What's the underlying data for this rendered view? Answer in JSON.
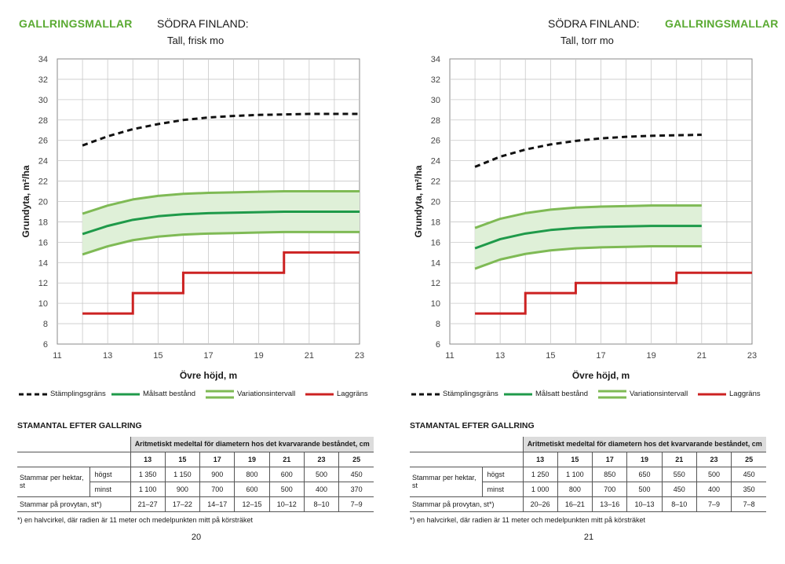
{
  "pages": [
    {
      "brand": "GALLRINGSMALLAR",
      "region": "SÖDRA FINLAND:",
      "subtitle": "Tall, frisk mo",
      "page_number": "20",
      "section_title": "STAMANTAL EFTER GALLRING",
      "table": {
        "header_caption": "Aritmetiskt medeltal för diametern hos det kvarvarande beståndet, cm",
        "diameters": [
          "13",
          "15",
          "17",
          "19",
          "21",
          "23",
          "25"
        ],
        "row_group_label": "Stammar per hektar, st",
        "rows": [
          {
            "label": "högst",
            "values": [
              "1 350",
              "1 150",
              "900",
              "800",
              "600",
              "500",
              "450"
            ]
          },
          {
            "label": "minst",
            "values": [
              "1 100",
              "900",
              "700",
              "600",
              "500",
              "400",
              "370"
            ]
          }
        ],
        "plot_row": {
          "label": "Stammar på provytan, st*)",
          "values": [
            "21–27",
            "17–22",
            "14–17",
            "12–15",
            "10–12",
            "8–10",
            "7–9"
          ]
        }
      },
      "footnote": "*) en halvcirkel, där radien är 11 meter och medelpunkten mitt på körsträket"
    },
    {
      "brand": "GALLRINGSMALLAR",
      "region": "SÖDRA FINLAND:",
      "subtitle": "Tall, torr mo",
      "page_number": "21",
      "section_title": "STAMANTAL EFTER GALLRING",
      "table": {
        "header_caption": "Aritmetiskt medeltal för diametern hos det kvarvarande beståndet, cm",
        "diameters": [
          "13",
          "15",
          "17",
          "19",
          "21",
          "23",
          "25"
        ],
        "row_group_label": "Stammar per hektar, st",
        "rows": [
          {
            "label": "högst",
            "values": [
              "1 250",
              "1 100",
              "850",
              "650",
              "550",
              "500",
              "450"
            ]
          },
          {
            "label": "minst",
            "values": [
              "1 000",
              "800",
              "700",
              "500",
              "450",
              "400",
              "350"
            ]
          }
        ],
        "plot_row": {
          "label": "Stammar på provytan, st*)",
          "values": [
            "20–26",
            "16–21",
            "13–16",
            "10–13",
            "8–10",
            "7–9",
            "7–8"
          ]
        }
      },
      "footnote": "*) en halvcirkel, där radien är 11 meter och medelpunkten mitt på körsträket"
    }
  ],
  "legend": {
    "stamp": "Stämplingsgräns",
    "target": "Målsatt bestånd",
    "variation": "Variationsintervall",
    "lag": "Laggräns"
  },
  "colors": {
    "brand_green": "#5aaa32",
    "stamp_line": "#111111",
    "target_line": "#1f9a4a",
    "variation_line": "#7fba55",
    "variation_fill": "#dff0d8",
    "lag_line": "#cc2222",
    "grid": "#c8c8c8"
  },
  "chart_data": [
    {
      "type": "line",
      "xlabel": "Övre höjd, m",
      "ylabel": "Grundyta, m²/ha",
      "xlim": [
        11,
        23
      ],
      "ylim": [
        6,
        34
      ],
      "x_ticks": [
        "11",
        "13",
        "15",
        "17",
        "19",
        "21",
        "23"
      ],
      "y_ticks": [
        "6",
        "8",
        "10",
        "12",
        "14",
        "16",
        "18",
        "20",
        "22",
        "24",
        "26",
        "28",
        "30",
        "32",
        "34"
      ],
      "grid": true,
      "legend_position": "bottom",
      "series": [
        {
          "name": "Stämplingsgräns",
          "style": "dashed",
          "x": [
            12,
            13,
            14,
            15,
            16,
            17,
            18,
            19,
            20,
            21,
            22,
            23
          ],
          "y": [
            25.5,
            26.4,
            27.1,
            27.6,
            28.0,
            28.25,
            28.4,
            28.5,
            28.55,
            28.6,
            28.6,
            28.6
          ]
        },
        {
          "name": "Målsatt bestånd",
          "style": "solid",
          "x": [
            12,
            13,
            14,
            15,
            16,
            17,
            18,
            19,
            20,
            21,
            22,
            23
          ],
          "y": [
            16.8,
            17.6,
            18.2,
            18.55,
            18.75,
            18.85,
            18.9,
            18.95,
            19.0,
            19.0,
            19.0,
            19.0
          ]
        },
        {
          "name": "Variationsintervall",
          "role": "upper",
          "style": "band",
          "x": [
            12,
            13,
            14,
            15,
            16,
            17,
            18,
            19,
            20,
            21,
            22,
            23
          ],
          "y": [
            18.8,
            19.6,
            20.2,
            20.55,
            20.75,
            20.85,
            20.9,
            20.95,
            21.0,
            21.0,
            21.0,
            21.0
          ]
        },
        {
          "name": "Variationsintervall",
          "role": "lower",
          "style": "band",
          "x": [
            12,
            13,
            14,
            15,
            16,
            17,
            18,
            19,
            20,
            21,
            22,
            23
          ],
          "y": [
            14.8,
            15.6,
            16.2,
            16.55,
            16.75,
            16.85,
            16.9,
            16.95,
            17.0,
            17.0,
            17.0,
            17.0
          ]
        },
        {
          "name": "Laggräns",
          "style": "step",
          "x": [
            12,
            14,
            14,
            16,
            16,
            20,
            20,
            23
          ],
          "y": [
            9,
            9,
            11,
            11,
            13,
            13,
            15,
            15
          ]
        }
      ]
    },
    {
      "type": "line",
      "xlabel": "Övre höjd, m",
      "ylabel": "Grundyta, m²/ha",
      "xlim": [
        11,
        23
      ],
      "ylim": [
        6,
        34
      ],
      "x_ticks": [
        "11",
        "13",
        "15",
        "17",
        "19",
        "21",
        "23"
      ],
      "y_ticks": [
        "6",
        "8",
        "10",
        "12",
        "14",
        "16",
        "18",
        "20",
        "22",
        "24",
        "26",
        "28",
        "30",
        "32",
        "34"
      ],
      "grid": true,
      "legend_position": "bottom",
      "series": [
        {
          "name": "Stämplingsgräns",
          "style": "dashed",
          "x": [
            12,
            13,
            14,
            15,
            16,
            17,
            18,
            19,
            20,
            21
          ],
          "y": [
            23.4,
            24.4,
            25.1,
            25.6,
            25.95,
            26.2,
            26.35,
            26.45,
            26.5,
            26.55
          ]
        },
        {
          "name": "Målsatt bestånd",
          "style": "solid",
          "x": [
            12,
            13,
            14,
            15,
            16,
            17,
            18,
            19,
            20,
            21
          ],
          "y": [
            15.4,
            16.3,
            16.85,
            17.2,
            17.4,
            17.5,
            17.55,
            17.6,
            17.6,
            17.6
          ]
        },
        {
          "name": "Variationsintervall",
          "role": "upper",
          "style": "band",
          "x": [
            12,
            13,
            14,
            15,
            16,
            17,
            18,
            19,
            20,
            21
          ],
          "y": [
            17.4,
            18.3,
            18.85,
            19.2,
            19.4,
            19.5,
            19.55,
            19.6,
            19.6,
            19.6
          ]
        },
        {
          "name": "Variationsintervall",
          "role": "lower",
          "style": "band",
          "x": [
            12,
            13,
            14,
            15,
            16,
            17,
            18,
            19,
            20,
            21
          ],
          "y": [
            13.4,
            14.3,
            14.85,
            15.2,
            15.4,
            15.5,
            15.55,
            15.6,
            15.6,
            15.6
          ]
        },
        {
          "name": "Laggräns",
          "style": "step",
          "x": [
            12,
            14,
            14,
            16,
            16,
            20,
            20,
            23
          ],
          "y": [
            9,
            9,
            11,
            11,
            12,
            12,
            13,
            13
          ]
        }
      ]
    }
  ]
}
